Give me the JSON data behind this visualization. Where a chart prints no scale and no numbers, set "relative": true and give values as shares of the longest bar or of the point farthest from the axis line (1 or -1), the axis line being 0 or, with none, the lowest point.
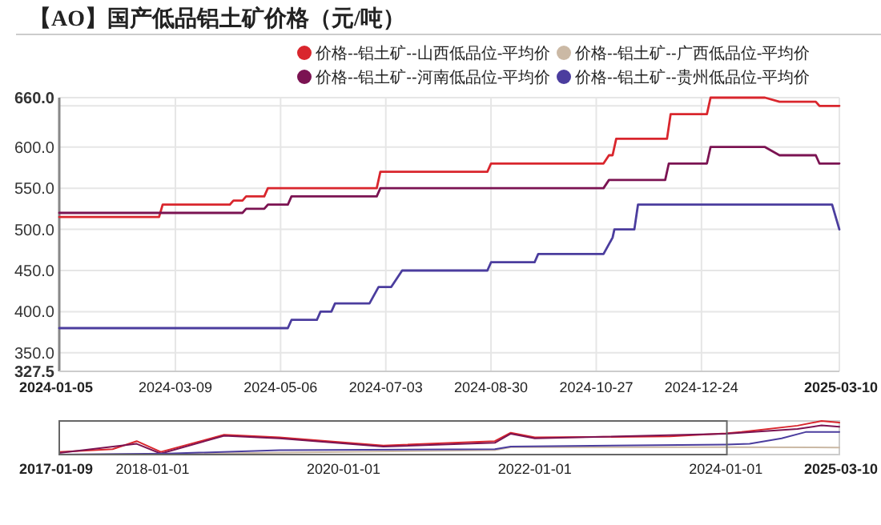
{
  "chart_data": [
    {
      "type": "line",
      "title": "【AO】国产低品铝土矿价格（元/吨）",
      "legend": "top right",
      "grid": true,
      "xlim": [
        "2024-01-05",
        "2025-03-10"
      ],
      "xticks": [
        "2024-01-05",
        "2024-03-09",
        "2024-05-06",
        "2024-07-03",
        "2024-08-30",
        "2024-10-27",
        "2024-12-24",
        "2025-03-10"
      ],
      "ylim": [
        327.5,
        660
      ],
      "yticks": [
        327.5,
        {
          "value": 350,
          "label": "350.0"
        },
        {
          "value": 400,
          "label": "400.0"
        },
        {
          "value": 450,
          "label": "450.0"
        },
        {
          "value": 500,
          "label": "500.0"
        },
        {
          "value": 550,
          "label": "550.0"
        },
        {
          "value": 600,
          "label": "600.0"
        },
        {
          "value": 650,
          "label": null
        },
        {
          "value": 660,
          "label": "660.0"
        }
      ],
      "series": [
        {
          "name": "价格--铝土矿--山西低品位-平均价",
          "color": "#d9262d",
          "x": [
            "2024-01-05",
            "2024-02-29",
            "2024-03-02",
            "2024-04-08",
            "2024-04-10",
            "2024-04-15",
            "2024-04-17",
            "2024-04-27",
            "2024-04-29",
            "2024-06-28",
            "2024-06-30",
            "2024-08-28",
            "2024-08-30",
            "2024-10-31",
            "2024-11-03",
            "2024-11-05",
            "2024-11-07",
            "2024-12-05",
            "2024-12-07",
            "2024-12-27",
            "2024-12-29",
            "2025-01-28",
            "2025-02-05",
            "2025-02-25",
            "2025-02-27",
            "2025-03-10"
          ],
          "values": [
            515,
            515,
            530,
            530,
            535,
            535,
            540,
            540,
            550,
            550,
            570,
            570,
            580,
            580,
            590,
            590,
            610,
            610,
            640,
            640,
            660,
            660,
            655,
            655,
            650,
            650
          ]
        },
        {
          "name": "价格--铝土矿--广西低品位-平均价",
          "color": "#cbb9a5"
        },
        {
          "name": "价格--铝土矿--河南低品位-平均价",
          "color": "#7b1352",
          "x": [
            "2024-01-05",
            "2024-04-15",
            "2024-04-17",
            "2024-04-27",
            "2024-04-29",
            "2024-05-10",
            "2024-05-12",
            "2024-06-28",
            "2024-06-30",
            "2024-10-31",
            "2024-11-03",
            "2024-12-04",
            "2024-12-06",
            "2024-12-27",
            "2024-12-29",
            "2025-01-28",
            "2025-02-05",
            "2025-02-25",
            "2025-02-27",
            "2025-03-10"
          ],
          "values": [
            520,
            520,
            525,
            525,
            530,
            530,
            540,
            540,
            550,
            550,
            560,
            560,
            580,
            580,
            600,
            600,
            590,
            590,
            580,
            580
          ]
        },
        {
          "name": "价格--铝土矿--贵州低品位-平均价",
          "color": "#4b3d9e",
          "x": [
            "2024-01-05",
            "2024-05-10",
            "2024-05-12",
            "2024-05-26",
            "2024-05-28",
            "2024-06-03",
            "2024-06-05",
            "2024-06-24",
            "2024-06-29",
            "2024-07-06",
            "2024-07-12",
            "2024-08-28",
            "2024-08-30",
            "2024-09-23",
            "2024-09-25",
            "2024-10-31",
            "2024-11-05",
            "2024-11-06",
            "2024-11-17",
            "2024-11-19",
            "2025-03-06",
            "2025-03-10"
          ],
          "values": [
            380,
            380,
            390,
            390,
            400,
            400,
            410,
            410,
            430,
            430,
            450,
            450,
            460,
            460,
            470,
            470,
            490,
            500,
            500,
            530,
            530,
            500
          ]
        }
      ]
    },
    {
      "type": "line",
      "relative": true,
      "xlim": [
        "2017-01-09",
        "2025-03-10"
      ],
      "xticks": [
        "2017-01-09",
        "2018-01-01",
        "2020-01-01",
        "2022-01-01",
        "2024-01-01",
        "2025-03-10"
      ],
      "series": [
        {
          "color": "#d9262d",
          "x": [
            "2017-01-09",
            "2017-08",
            "2017-11",
            "2018-02",
            "2018-10",
            "2019-05",
            "2020-06",
            "2021-08",
            "2021-10",
            "2022-01",
            "2023-06",
            "2024-01",
            "2024-03",
            "2024-10",
            "2025-01",
            "2025-03-10"
          ],
          "values": [
            0.08,
            0.16,
            0.4,
            0.08,
            0.59,
            0.51,
            0.27,
            0.4,
            0.65,
            0.51,
            0.54,
            0.63,
            0.67,
            0.86,
            1,
            0.95
          ]
        },
        {
          "color": "#cbb9a5",
          "x": [
            "2017-01-09",
            "2018-03",
            "2021-08",
            "2021-10",
            "2024-01",
            "2025-03-10"
          ],
          "values": [
            0,
            0.02,
            0.13,
            0.22,
            0.22,
            0.21
          ]
        },
        {
          "color": "#7b1352",
          "x": [
            "2017-01-09",
            "2017-11",
            "2018-02",
            "2018-10",
            "2019-05",
            "2020-06",
            "2021-08",
            "2021-10",
            "2022-01",
            "2024-01",
            "2024-10",
            "2025-01",
            "2025-03-10"
          ],
          "values": [
            0.05,
            0.32,
            0.03,
            0.56,
            0.48,
            0.24,
            0.35,
            0.62,
            0.48,
            0.62,
            0.76,
            0.87,
            0.83
          ]
        },
        {
          "color": "#4b3d9e",
          "x": [
            "2017-01-09",
            "2018-03",
            "2019-05",
            "2021-08",
            "2021-10",
            "2024-01",
            "2024-04",
            "2024-08",
            "2024-11",
            "2025-03-10"
          ],
          "values": [
            0,
            0.03,
            0.13,
            0.16,
            0.24,
            0.3,
            0.32,
            0.48,
            0.67,
            0.67
          ]
        }
      ]
    }
  ]
}
